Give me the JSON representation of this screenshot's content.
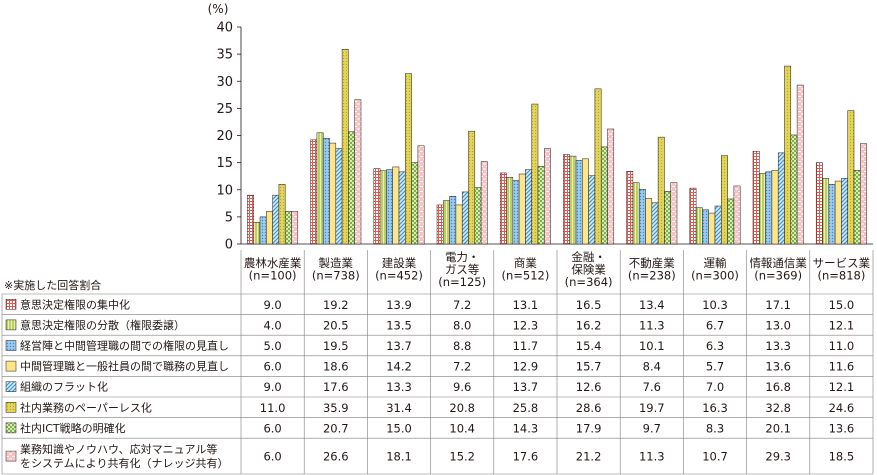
{
  "chart_data": {
    "type": "bar",
    "unit": "(%)",
    "ylim": [
      0,
      40
    ],
    "yticks": [
      0,
      5,
      10,
      15,
      20,
      25,
      30,
      35,
      40
    ],
    "grid": false,
    "table_note": "※実施した回答割合",
    "categories": [
      {
        "line1": "農林水産業",
        "line2": "(n=100)"
      },
      {
        "line1": "製造業",
        "line2": "(n=738)"
      },
      {
        "line1": "建設業",
        "line2": "(n=452)"
      },
      {
        "line1": "電力・",
        "line2": "ガス等",
        "line3": "(n=125)"
      },
      {
        "line1": "商業",
        "line2": "(n=512)"
      },
      {
        "line1": "金融・",
        "line2": "保険業",
        "line3": "(n=364)"
      },
      {
        "line1": "不動産業",
        "line2": "(n=238)"
      },
      {
        "line1": "運輸",
        "line2": "(n=300)"
      },
      {
        "line1": "情報通信業",
        "line2": "(n=369)"
      },
      {
        "line1": "サービス業",
        "line2": "(n=818)"
      }
    ],
    "series": [
      {
        "name": "意思決定権限の集中化",
        "color": "#e05a52",
        "pattern": "grid",
        "values": [
          9.0,
          19.2,
          13.9,
          7.2,
          13.1,
          16.5,
          13.4,
          10.3,
          17.1,
          15.0
        ],
        "labels": [
          "9.0",
          "19.2",
          "13.9",
          "7.2",
          "13.1",
          "16.5",
          "13.4",
          "10.3",
          "17.1",
          "15.0"
        ]
      },
      {
        "name": "意思決定権限の分散（権限委譲）",
        "color": "#bcd35c",
        "pattern": "vlines",
        "values": [
          4.0,
          20.5,
          13.5,
          8.0,
          12.3,
          16.2,
          11.3,
          6.7,
          13.0,
          12.1
        ],
        "labels": [
          "4.0",
          "20.5",
          "13.5",
          "8.0",
          "12.3",
          "16.2",
          "11.3",
          "6.7",
          "13.0",
          "12.1"
        ]
      },
      {
        "name": "経営陣と中間管理職の間での権限の見直し",
        "color": "#7ab6e6",
        "pattern": "dots",
        "values": [
          5.0,
          19.5,
          13.7,
          8.8,
          11.7,
          15.4,
          10.1,
          6.3,
          13.3,
          11.0
        ],
        "labels": [
          "5.0",
          "19.5",
          "13.7",
          "8.8",
          "11.7",
          "15.4",
          "10.1",
          "6.3",
          "13.3",
          "11.0"
        ]
      },
      {
        "name": "中間管理職と一般社員の間で職務の見直し",
        "color": "#fde58a",
        "pattern": "solid",
        "values": [
          6.0,
          18.6,
          14.2,
          7.2,
          12.9,
          15.7,
          8.4,
          5.7,
          13.6,
          11.6
        ],
        "labels": [
          "6.0",
          "18.6",
          "14.2",
          "7.2",
          "12.9",
          "15.7",
          "8.4",
          "5.7",
          "13.6",
          "11.6"
        ]
      },
      {
        "name": "組織のフラット化",
        "color": "#8fc6ea",
        "pattern": "diag",
        "values": [
          9.0,
          17.6,
          13.3,
          9.6,
          13.7,
          12.6,
          7.6,
          7.0,
          16.8,
          12.1
        ],
        "labels": [
          "9.0",
          "17.6",
          "13.3",
          "9.6",
          "13.7",
          "12.6",
          "7.6",
          "7.0",
          "16.8",
          "12.1"
        ]
      },
      {
        "name": "社内業務のペーパーレス化",
        "color": "#dccb3e",
        "pattern": "olive",
        "values": [
          11.0,
          35.9,
          31.4,
          20.8,
          25.8,
          28.6,
          19.7,
          16.3,
          32.8,
          24.6
        ],
        "labels": [
          "11.0",
          "35.9",
          "31.4",
          "20.8",
          "25.8",
          "28.6",
          "19.7",
          "16.3",
          "32.8",
          "24.6"
        ]
      },
      {
        "name": "社内ICT戦略の明確化",
        "color": "#a8cf7a",
        "pattern": "check",
        "values": [
          6.0,
          20.7,
          15.0,
          10.4,
          14.3,
          17.9,
          9.7,
          8.3,
          20.1,
          13.6
        ],
        "labels": [
          "6.0",
          "20.7",
          "15.0",
          "10.4",
          "14.3",
          "17.9",
          "9.7",
          "8.3",
          "20.1",
          "13.6"
        ]
      },
      {
        "name": "業務知識やノウハウ、応対マニュアル等をシステムにより共有化（ナレッジ共有）",
        "name_line1": "業務知識やノウハウ、応対マニュアル等",
        "name_line2": "をシステムにより共有化（ナレッジ共有）",
        "color": "#f2a6aa",
        "pattern": "dash",
        "values": [
          6.0,
          26.6,
          18.1,
          15.2,
          17.6,
          21.2,
          11.3,
          10.7,
          29.3,
          18.5
        ],
        "labels": [
          "6.0",
          "26.6",
          "18.1",
          "15.2",
          "17.6",
          "21.2",
          "11.3",
          "10.7",
          "29.3",
          "18.5"
        ]
      }
    ]
  }
}
